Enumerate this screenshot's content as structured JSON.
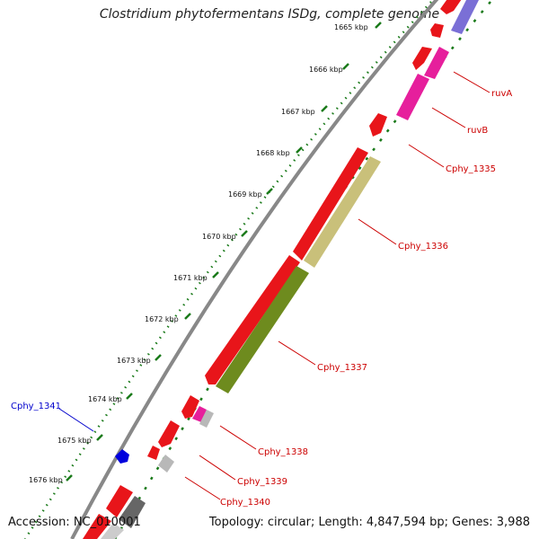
{
  "title": "Clostridium phytofermentans ISDg, complete genome",
  "footer": {
    "accession": "Accession: NC_010001",
    "summary": "Topology: circular; Length: 4,847,594 bp; Genes: 3,988"
  },
  "ticks": [
    "1665 kbp",
    "1666 kbp",
    "1667 kbp",
    "1668 kbp",
    "1669 kbp",
    "1670 kbp",
    "1671 kbp",
    "1672 kbp",
    "1673 kbp",
    "1674 kbp",
    "1675 kbp",
    "1676 kbp"
  ],
  "gene_labels": [
    {
      "name": "ruvA",
      "color": "#cc0000"
    },
    {
      "name": "ruvB",
      "color": "#cc0000"
    },
    {
      "name": "Cphy_1335",
      "color": "#cc0000"
    },
    {
      "name": "Cphy_1336",
      "color": "#cc0000"
    },
    {
      "name": "Cphy_1337",
      "color": "#cc0000"
    },
    {
      "name": "Cphy_1338",
      "color": "#cc0000"
    },
    {
      "name": "Cphy_1339",
      "color": "#cc0000"
    },
    {
      "name": "Cphy_1340",
      "color": "#cc0000"
    },
    {
      "name": "Cphy_1341",
      "color": "#0000cc"
    }
  ],
  "colors": {
    "cds": "#e8151a",
    "rna": "#e61f9c",
    "olive_light": "#c9c07a",
    "olive_dark": "#6e8b1e",
    "blue": "#0000dd",
    "gray": "#b8b8b8",
    "violet": "#7a6fd6",
    "backbone": "#888888",
    "gc_dots": "#1a7a1a"
  }
}
